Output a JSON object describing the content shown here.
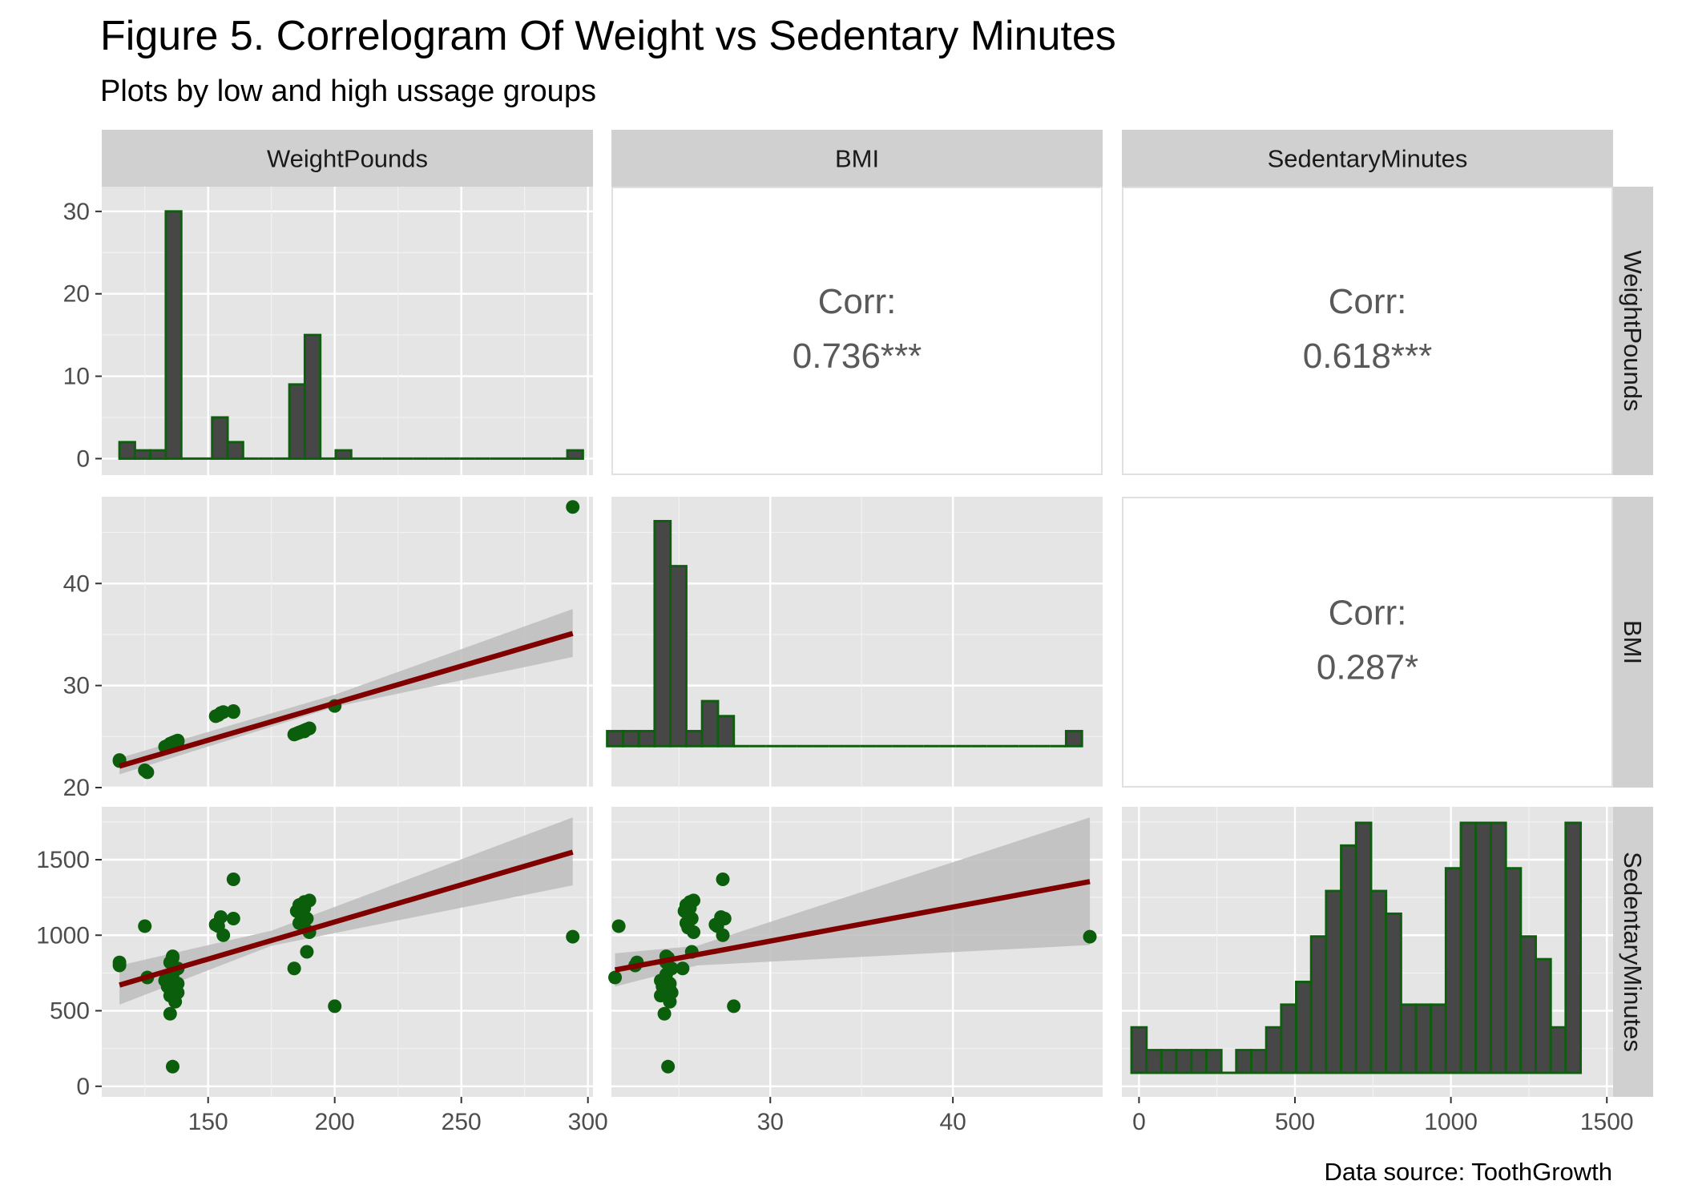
{
  "title": "Figure 5. Correlogram Of Weight vs Sedentary Minutes",
  "subtitle": "Plots by low and high ussage groups",
  "caption": "Data source: ToothGrowth",
  "colors": {
    "panel_bg": "#e5e5e5",
    "strip_bg": "#d0d0d0",
    "bar_fill": "#474747",
    "bar_outline": "#0f5e0f",
    "point": "#0b5e0b",
    "fit_line": "#800000",
    "ribbon": "#bdbdbd",
    "corr_text": "#595959"
  },
  "chart_data": {
    "type": "scatter",
    "variables": [
      "WeightPounds",
      "BMI",
      "SedentaryMinutes"
    ],
    "grid": true,
    "axes": {
      "WeightPounds": {
        "range": [
          108,
          302
        ],
        "ticks": [
          150,
          200,
          250,
          300
        ],
        "tick_labels": [
          "150",
          "200",
          "250",
          "300"
        ]
      },
      "BMI": {
        "range": [
          21.3,
          48.2
        ],
        "ticks": [
          30,
          40
        ],
        "tick_labels": [
          "30",
          "40"
        ],
        "row_range": [
          20,
          48.5
        ],
        "row_ticks": [
          20,
          30,
          40
        ],
        "row_tick_labels": [
          "20",
          "30",
          "40"
        ]
      },
      "SedentaryMinutes": {
        "range": [
          -55,
          1520
        ],
        "ticks": [
          0,
          500,
          1000,
          1500
        ],
        "tick_labels": [
          "0",
          "500",
          "1000",
          "1500"
        ],
        "row_range": [
          -70,
          1850
        ],
        "row_ticks": [
          0,
          500,
          1000,
          1500
        ],
        "row_tick_labels": [
          "0",
          "500",
          "1000",
          "1500"
        ]
      }
    },
    "histograms": {
      "WeightPounds": {
        "count_axis": {
          "range": [
            -2,
            33
          ],
          "ticks": [
            0,
            10,
            20,
            30
          ],
          "tick_labels": [
            "0",
            "10",
            "20",
            "30"
          ]
        },
        "bins": [
          {
            "x0": 115,
            "x1": 121.1,
            "count": 2
          },
          {
            "x0": 121.1,
            "x1": 127.2,
            "count": 1
          },
          {
            "x0": 127.2,
            "x1": 133.3,
            "count": 1
          },
          {
            "x0": 133.3,
            "x1": 139.4,
            "count": 30
          },
          {
            "x0": 139.4,
            "x1": 145.5,
            "count": 0
          },
          {
            "x0": 145.5,
            "x1": 151.6,
            "count": 0
          },
          {
            "x0": 151.6,
            "x1": 157.7,
            "count": 5
          },
          {
            "x0": 157.7,
            "x1": 163.8,
            "count": 2
          },
          {
            "x0": 163.8,
            "x1": 169.9,
            "count": 0
          },
          {
            "x0": 169.9,
            "x1": 176.0,
            "count": 0
          },
          {
            "x0": 176.0,
            "x1": 182.1,
            "count": 0
          },
          {
            "x0": 182.1,
            "x1": 188.2,
            "count": 9
          },
          {
            "x0": 188.2,
            "x1": 194.3,
            "count": 15
          },
          {
            "x0": 194.3,
            "x1": 200.4,
            "count": 0
          },
          {
            "x0": 200.4,
            "x1": 206.5,
            "count": 1
          },
          {
            "x0": 206.5,
            "x1": 212.6,
            "count": 0
          },
          {
            "x0": 212.6,
            "x1": 218.7,
            "count": 0
          },
          {
            "x0": 218.7,
            "x1": 224.8,
            "count": 0
          },
          {
            "x0": 224.8,
            "x1": 230.9,
            "count": 0
          },
          {
            "x0": 230.9,
            "x1": 237.0,
            "count": 0
          },
          {
            "x0": 237.0,
            "x1": 243.1,
            "count": 0
          },
          {
            "x0": 243.1,
            "x1": 249.2,
            "count": 0
          },
          {
            "x0": 249.2,
            "x1": 255.3,
            "count": 0
          },
          {
            "x0": 255.3,
            "x1": 261.4,
            "count": 0
          },
          {
            "x0": 261.4,
            "x1": 267.5,
            "count": 0
          },
          {
            "x0": 267.5,
            "x1": 273.6,
            "count": 0
          },
          {
            "x0": 273.6,
            "x1": 279.7,
            "count": 0
          },
          {
            "x0": 279.7,
            "x1": 285.8,
            "count": 0
          },
          {
            "x0": 285.8,
            "x1": 291.9,
            "count": 0
          },
          {
            "x0": 291.9,
            "x1": 298.0,
            "count": 1
          }
        ]
      },
      "BMI": {
        "counts": [
          1,
          1,
          1,
          15,
          12,
          1,
          3,
          2,
          0,
          0,
          0,
          0,
          0,
          0,
          0,
          0,
          0,
          0,
          0,
          0,
          0,
          0,
          0,
          0,
          0,
          0,
          0,
          0,
          0,
          1
        ],
        "x_start": 21.5,
        "x_end": 47.5
      },
      "SedentaryMinutes": {
        "counts": [
          2,
          1,
          1,
          1,
          1,
          1,
          0,
          1,
          1,
          2,
          3,
          4,
          6,
          8,
          10,
          11,
          8,
          7,
          3,
          3,
          3,
          9,
          11,
          11,
          11,
          9,
          6,
          5,
          2,
          11
        ],
        "x_start": 0,
        "x_end": 1440
      }
    },
    "correlations": [
      {
        "row": "WeightPounds",
        "col": "BMI",
        "label": "Corr:",
        "value": "0.736***"
      },
      {
        "row": "WeightPounds",
        "col": "SedentaryMinutes",
        "label": "Corr:",
        "value": "0.618***"
      },
      {
        "row": "BMI",
        "col": "SedentaryMinutes",
        "label": "Corr:",
        "value": "0.287*"
      }
    ],
    "points": [
      {
        "w": 115,
        "bmi": 22.6,
        "sed": 800
      },
      {
        "w": 115,
        "bmi": 22.7,
        "sed": 820
      },
      {
        "w": 125,
        "bmi": 21.7,
        "sed": 1060
      },
      {
        "w": 126,
        "bmi": 21.5,
        "sed": 720
      },
      {
        "w": 133,
        "bmi": 24.0,
        "sed": 700
      },
      {
        "w": 134,
        "bmi": 24.1,
        "sed": 660
      },
      {
        "w": 135,
        "bmi": 24.0,
        "sed": 600
      },
      {
        "w": 135,
        "bmi": 24.2,
        "sed": 480
      },
      {
        "w": 135,
        "bmi": 24.3,
        "sed": 820
      },
      {
        "w": 136,
        "bmi": 24.3,
        "sed": 860
      },
      {
        "w": 136,
        "bmi": 24.4,
        "sed": 850
      },
      {
        "w": 136,
        "bmi": 24.3,
        "sed": 740
      },
      {
        "w": 136,
        "bmi": 24.4,
        "sed": 130
      },
      {
        "w": 137,
        "bmi": 24.5,
        "sed": 560
      },
      {
        "w": 137,
        "bmi": 24.5,
        "sed": 640
      },
      {
        "w": 138,
        "bmi": 24.5,
        "sed": 680
      },
      {
        "w": 138,
        "bmi": 24.6,
        "sed": 780
      },
      {
        "w": 138,
        "bmi": 24.6,
        "sed": 620
      },
      {
        "w": 153,
        "bmi": 27.0,
        "sed": 1070
      },
      {
        "w": 154,
        "bmi": 27.1,
        "sed": 1060
      },
      {
        "w": 155,
        "bmi": 27.3,
        "sed": 1120
      },
      {
        "w": 156,
        "bmi": 27.4,
        "sed": 1000
      },
      {
        "w": 160,
        "bmi": 27.4,
        "sed": 1370
      },
      {
        "w": 160,
        "bmi": 27.5,
        "sed": 1110
      },
      {
        "w": 184,
        "bmi": 25.2,
        "sed": 780
      },
      {
        "w": 185,
        "bmi": 25.3,
        "sed": 1160
      },
      {
        "w": 186,
        "bmi": 25.4,
        "sed": 1200
      },
      {
        "w": 186,
        "bmi": 25.4,
        "sed": 1080
      },
      {
        "w": 187,
        "bmi": 25.5,
        "sed": 1140
      },
      {
        "w": 188,
        "bmi": 25.6,
        "sed": 1220
      },
      {
        "w": 188,
        "bmi": 25.5,
        "sed": 1050
      },
      {
        "w": 188,
        "bmi": 25.6,
        "sed": 1180
      },
      {
        "w": 189,
        "bmi": 25.7,
        "sed": 890
      },
      {
        "w": 189,
        "bmi": 25.7,
        "sed": 1110
      },
      {
        "w": 190,
        "bmi": 25.8,
        "sed": 1230
      },
      {
        "w": 190,
        "bmi": 25.8,
        "sed": 1020
      },
      {
        "w": 200,
        "bmi": 28.0,
        "sed": 530
      },
      {
        "w": 294,
        "bmi": 47.5,
        "sed": 990
      }
    ],
    "fits": [
      {
        "x": "WeightPounds",
        "y": "BMI",
        "line": [
          [
            115,
            22.1
          ],
          [
            294,
            35.1
          ]
        ],
        "ribbon_upper": [
          [
            115,
            22.9
          ],
          [
            200,
            29.1
          ],
          [
            294,
            37.5
          ]
        ],
        "ribbon_lower": [
          [
            115,
            21.3
          ],
          [
            200,
            27.9
          ],
          [
            294,
            32.8
          ]
        ]
      },
      {
        "x": "WeightPounds",
        "y": "SedentaryMinutes",
        "line": [
          [
            115,
            670
          ],
          [
            294,
            1550
          ]
        ],
        "ribbon_upper": [
          [
            115,
            800
          ],
          [
            175,
            1030
          ],
          [
            294,
            1780
          ]
        ],
        "ribbon_lower": [
          [
            115,
            540
          ],
          [
            175,
            930
          ],
          [
            294,
            1330
          ]
        ]
      },
      {
        "x": "BMI",
        "y": "SedentaryMinutes",
        "line": [
          [
            21.5,
            770
          ],
          [
            47.5,
            1355
          ]
        ],
        "ribbon_upper": [
          [
            21.5,
            880
          ],
          [
            26,
            930
          ],
          [
            47.5,
            1780
          ]
        ],
        "ribbon_lower": [
          [
            21.5,
            660
          ],
          [
            26,
            800
          ],
          [
            47.5,
            935
          ]
        ]
      }
    ]
  }
}
